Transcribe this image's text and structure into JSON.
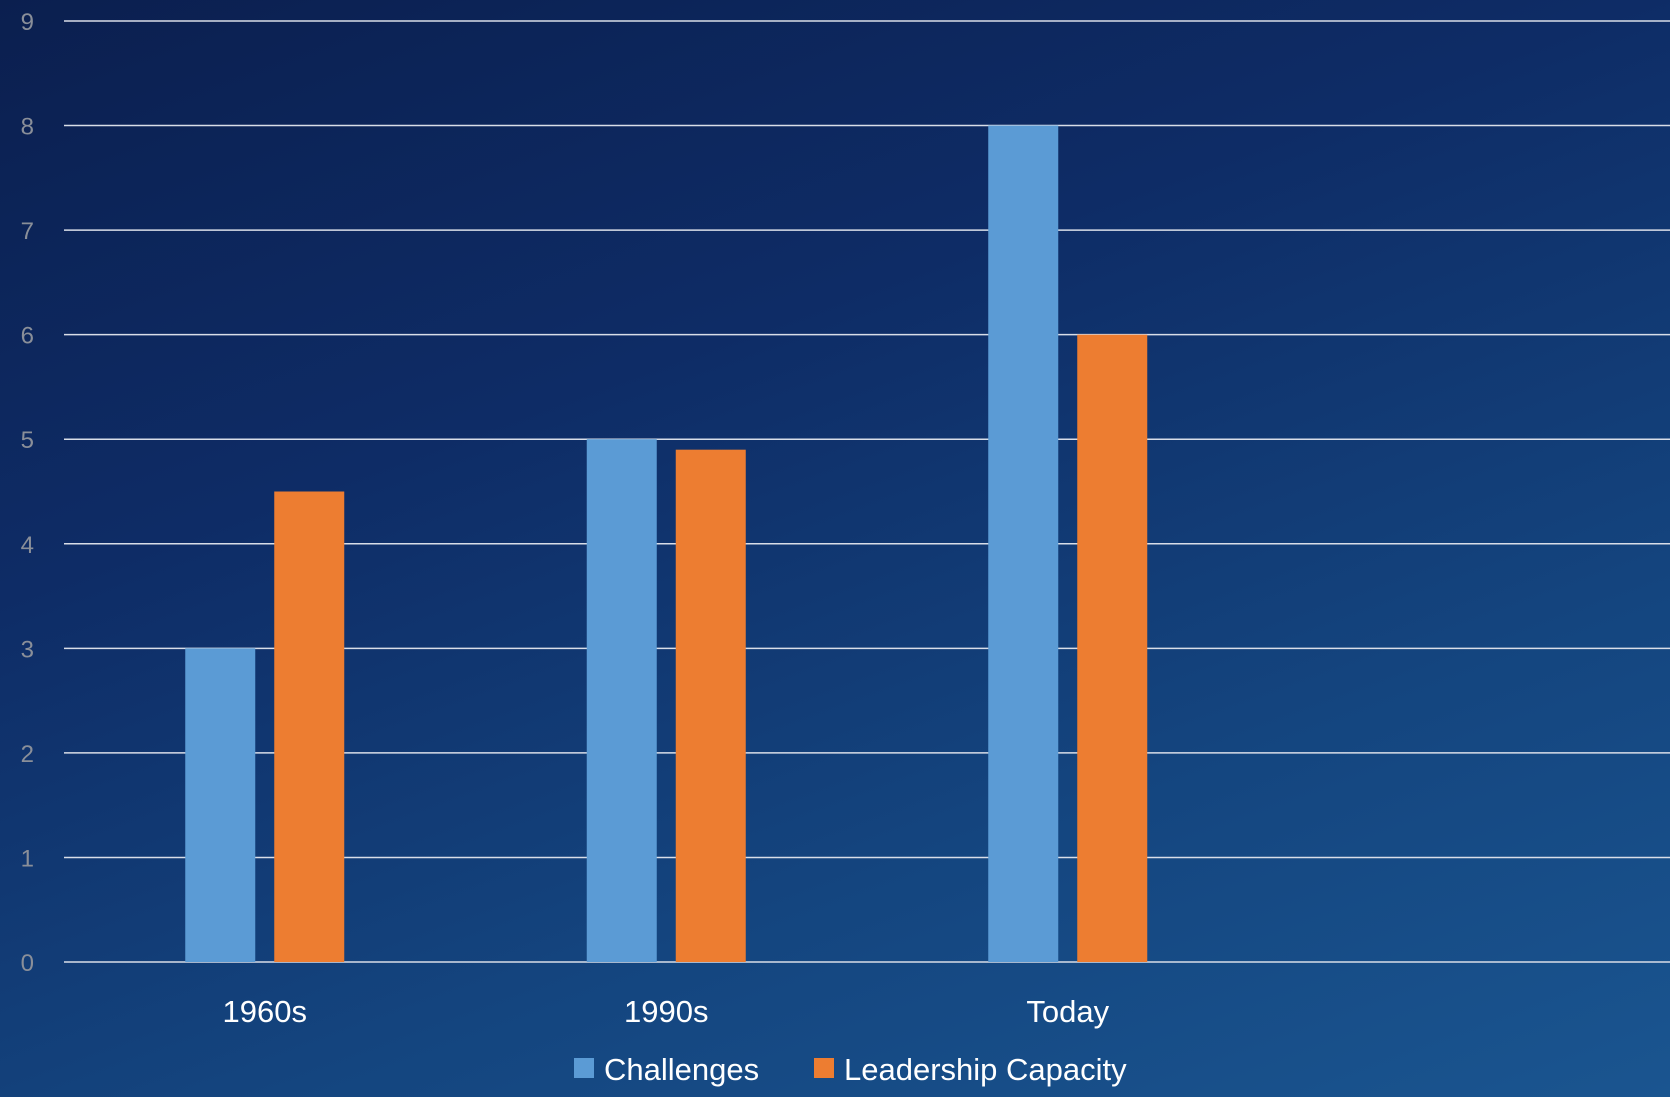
{
  "chart_data": {
    "type": "bar",
    "categories": [
      "1960s",
      "1990s",
      "Today",
      ""
    ],
    "series": [
      {
        "name": "Challenges",
        "values": [
          3,
          5,
          8,
          null
        ],
        "color": "#5b9bd5"
      },
      {
        "name": "Leadership Capacity",
        "values": [
          4.5,
          4.9,
          6,
          null
        ],
        "color": "#ed7d31"
      }
    ],
    "y_ticks": [
      "0",
      "1",
      "2",
      "3",
      "4",
      "5",
      "6",
      "7",
      "8",
      "9"
    ],
    "ylim": [
      0,
      9
    ],
    "title": "",
    "xlabel": "",
    "ylabel": "",
    "grid": true,
    "legend_position": "bottom"
  }
}
